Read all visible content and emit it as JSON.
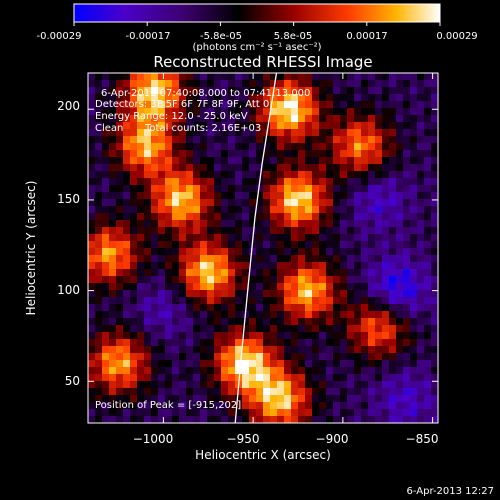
{
  "colorbar": {
    "ticks": [
      "-0.00029",
      "-0.00017",
      "-5.8e-05",
      "5.8e-05",
      "0.00017",
      "0.00029"
    ],
    "unit_label": "(photons cm⁻² s⁻¹ asec⁻²)",
    "range": [
      -0.00029,
      0.00029
    ],
    "colors": [
      "#0000ff",
      "#4b00c8",
      "#3c006e",
      "#000000",
      "#9a0000",
      "#ff3c00",
      "#ffb400",
      "#ffffff"
    ]
  },
  "annotations": {
    "time_range": "6-Apr-2013 07:40:08.000 to 07:41:13.000",
    "detectors": "Detectors: 3F 5F 6F 7F 8F 9F, Att 0",
    "energy_range": "Energy Range: 12.0 - 25.0 keV",
    "method": "Clean",
    "counts": "Total counts: 2.16E+03",
    "peak": "Position of Peak = [-915,202]"
  },
  "footer": {
    "timestamp": "6-Apr-2013 12:27"
  },
  "chart_data": {
    "type": "heatmap",
    "title": "Reconstructed RHESSI Image",
    "xlabel": "Heliocentric X (arcsec)",
    "ylabel": "Heliocentric Y (arcsec)",
    "xlim": [
      -1042,
      -847
    ],
    "ylim": [
      27,
      220
    ],
    "xticks": [
      -1000,
      -950,
      -900,
      -850
    ],
    "xtick_labels": [
      "−1000",
      "−950",
      "−900",
      "−850"
    ],
    "yticks": [
      50,
      100,
      150,
      200
    ],
    "ytick_labels": [
      "50",
      "100",
      "150",
      "200"
    ],
    "limb_curve": {
      "x": [
        -960,
        -957,
        -953,
        -949,
        -945,
        -941,
        -937
      ],
      "y": [
        27,
        60,
        100,
        140,
        170,
        195,
        220
      ]
    },
    "bright_regions": [
      {
        "x": -1005,
        "y": 210,
        "intensity": 0.00026
      },
      {
        "x": -1010,
        "y": 180,
        "intensity": 0.00022
      },
      {
        "x": -990,
        "y": 150,
        "intensity": 0.00024
      },
      {
        "x": -1030,
        "y": 120,
        "intensity": 0.0002
      },
      {
        "x": -1025,
        "y": 60,
        "intensity": 0.00021
      },
      {
        "x": -975,
        "y": 110,
        "intensity": 0.00025
      },
      {
        "x": -955,
        "y": 60,
        "intensity": 0.00027
      },
      {
        "x": -930,
        "y": 200,
        "intensity": 0.00028
      },
      {
        "x": -925,
        "y": 150,
        "intensity": 0.00026
      },
      {
        "x": -920,
        "y": 100,
        "intensity": 0.00023
      },
      {
        "x": -935,
        "y": 40,
        "intensity": 0.00024
      },
      {
        "x": -890,
        "y": 180,
        "intensity": 0.00018
      },
      {
        "x": -880,
        "y": 80,
        "intensity": 0.00017
      }
    ],
    "dark_regions": [
      {
        "x": -870,
        "y": 100,
        "intensity": -0.00028
      },
      {
        "x": -880,
        "y": 150,
        "intensity": -0.0002
      },
      {
        "x": -865,
        "y": 40,
        "intensity": -0.0002
      },
      {
        "x": -1000,
        "y": 90,
        "intensity": -0.00018
      }
    ]
  }
}
